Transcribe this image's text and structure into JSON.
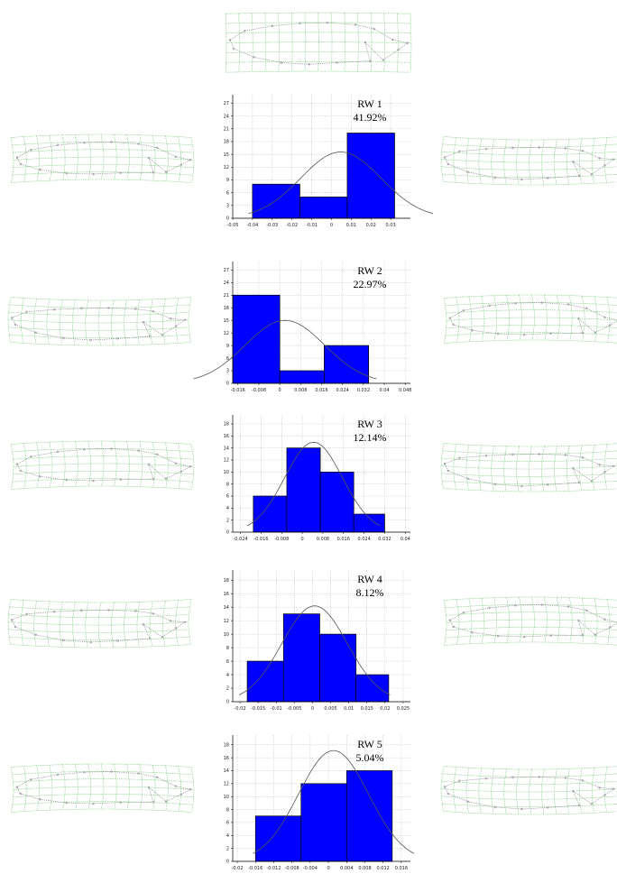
{
  "chart_data": [
    {
      "type": "histogram",
      "title": "RW 1",
      "subtitle": "41.92%",
      "bins": [
        -0.04,
        -0.016,
        0.008,
        0.032
      ],
      "counts": [
        8,
        5,
        20
      ],
      "color": "#0000ff",
      "xlim": [
        -0.05,
        0.04
      ],
      "xticks": [
        -0.05,
        -0.04,
        -0.03,
        -0.02,
        -0.01,
        0,
        0.01,
        0.02,
        0.03
      ],
      "ylim": [
        0,
        29
      ],
      "yticks": [
        0,
        3,
        6,
        9,
        12,
        15,
        18,
        21,
        24,
        27
      ],
      "grid": true
    },
    {
      "type": "histogram",
      "title": "RW 2",
      "subtitle": "22.97%",
      "bins": [
        -0.018,
        0,
        0.017,
        0.034
      ],
      "counts": [
        21,
        3,
        9
      ],
      "color": "#0000ff",
      "xlim": [
        -0.018,
        0.05
      ],
      "xticks": [
        -0.016,
        -0.008,
        0,
        0.008,
        0.016,
        0.024,
        0.032,
        0.04,
        0.048
      ],
      "ylim": [
        0,
        29
      ],
      "yticks": [
        0,
        3,
        6,
        9,
        12,
        15,
        18,
        21,
        24,
        27
      ],
      "grid": true
    },
    {
      "type": "histogram",
      "title": "RW 3",
      "subtitle": "12.14%",
      "bins": [
        -0.019,
        -0.006,
        0.007,
        0.02,
        0.032
      ],
      "counts": [
        6,
        14,
        10,
        3
      ],
      "color": "#0000ff",
      "xlim": [
        -0.027,
        0.042
      ],
      "xticks": [
        -0.024,
        -0.016,
        -0.008,
        0,
        0.008,
        0.016,
        0.024,
        0.032,
        0.04
      ],
      "ylim": [
        0,
        19.5
      ],
      "yticks": [
        0,
        2,
        4,
        6,
        8,
        10,
        12,
        14,
        16,
        18
      ],
      "grid": true
    },
    {
      "type": "histogram",
      "title": "RW 4",
      "subtitle": "8.12%",
      "bins": [
        -0.018,
        -0.008,
        0.002,
        0.012,
        0.021
      ],
      "counts": [
        6,
        13,
        10,
        4
      ],
      "color": "#0000ff",
      "xlim": [
        -0.022,
        0.027
      ],
      "xticks": [
        -0.02,
        -0.015,
        -0.01,
        -0.005,
        0,
        0.005,
        0.01,
        0.015,
        0.02,
        0.025
      ],
      "ylim": [
        0,
        19.5
      ],
      "yticks": [
        0,
        2,
        4,
        6,
        8,
        10,
        12,
        14,
        16,
        18
      ],
      "grid": true
    },
    {
      "type": "histogram",
      "title": "RW 5",
      "subtitle": "5.04%",
      "bins": [
        -0.016,
        -0.006,
        0.004,
        0.014
      ],
      "counts": [
        7,
        12,
        14
      ],
      "color": "#0000ff",
      "xlim": [
        -0.021,
        0.018
      ],
      "xticks": [
        -0.02,
        -0.016,
        -0.012,
        -0.008,
        -0.004,
        0,
        0.004,
        0.008,
        0.012,
        0.016
      ],
      "ylim": [
        0,
        19.5
      ],
      "yticks": [
        0,
        2,
        4,
        6,
        8,
        10,
        12,
        14,
        16,
        18
      ],
      "grid": true
    }
  ]
}
